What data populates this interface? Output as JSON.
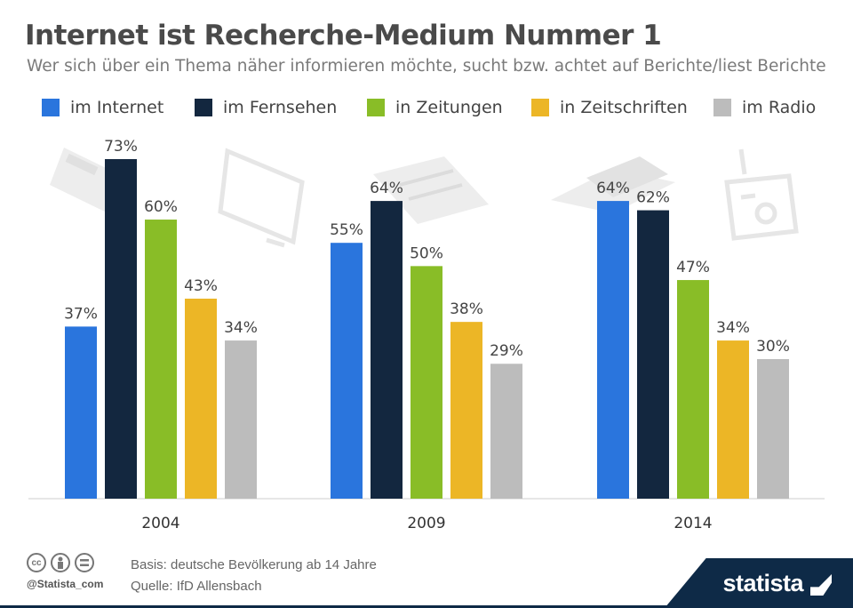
{
  "header": {
    "title": "Internet ist Recherche-Medium Nummer 1",
    "subtitle": "Wer sich über ein Thema näher informieren möchte, sucht bzw. achtet auf Berichte/liest Berichte"
  },
  "chart_data": {
    "type": "bar",
    "categories": [
      "2004",
      "2009",
      "2014"
    ],
    "series": [
      {
        "name": "im Internet",
        "color": "#2a75dd",
        "values": [
          37,
          55,
          64
        ]
      },
      {
        "name": "im Fernsehen",
        "color": "#13273f",
        "values": [
          73,
          64,
          62
        ]
      },
      {
        "name": "in Zeitungen",
        "color": "#89bd27",
        "values": [
          60,
          50,
          47
        ]
      },
      {
        "name": "in Zeitschriften",
        "color": "#ecb626",
        "values": [
          43,
          38,
          34
        ]
      },
      {
        "name": "im Radio",
        "color": "#bcbcbc",
        "values": [
          34,
          29,
          30
        ]
      }
    ],
    "value_suffix": "%",
    "ylim": [
      0,
      73
    ],
    "grid": false,
    "legend_position": "top"
  },
  "footer": {
    "cc_icons": [
      "cc-icon",
      "by-icon",
      "nd-icon"
    ],
    "handle": "@Statista_com",
    "basis": "Basis: deutsche Bevölkerung ab 14 Jahre",
    "quelle": "Quelle: IfD Allensbach",
    "brand": "statista"
  }
}
